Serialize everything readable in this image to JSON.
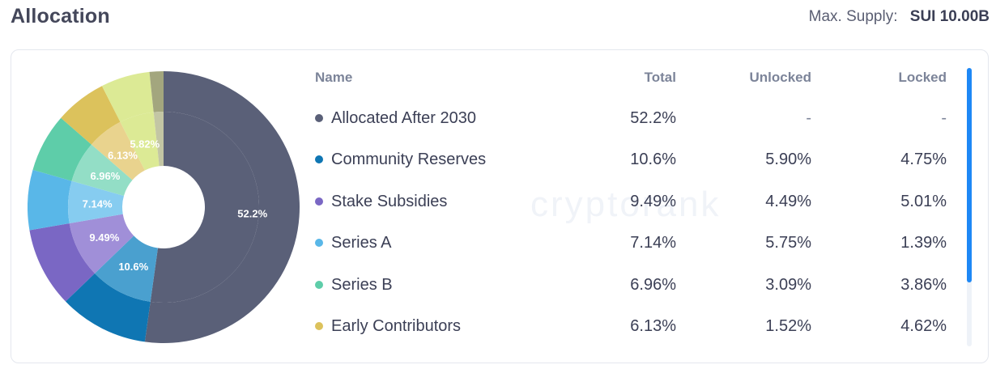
{
  "header": {
    "title": "Allocation",
    "supply_label": "Max. Supply:",
    "supply_value": "SUI 10.00B"
  },
  "watermark": "cryptorank",
  "table": {
    "columns": [
      "Name",
      "Total",
      "Unlocked",
      "Locked"
    ],
    "rows": [
      {
        "name": "Allocated After 2030",
        "total": "52.2%",
        "unlocked": "-",
        "locked": "-",
        "color": "#5a6078"
      },
      {
        "name": "Community Reserves",
        "total": "10.6%",
        "unlocked": "5.90%",
        "locked": "4.75%",
        "color": "#0f76b3"
      },
      {
        "name": "Stake Subsidies",
        "total": "9.49%",
        "unlocked": "4.49%",
        "locked": "5.01%",
        "color": "#7a67c4"
      },
      {
        "name": "Series A",
        "total": "7.14%",
        "unlocked": "5.75%",
        "locked": "1.39%",
        "color": "#59b7e8"
      },
      {
        "name": "Series B",
        "total": "6.96%",
        "unlocked": "3.09%",
        "locked": "3.86%",
        "color": "#5ecda9"
      },
      {
        "name": "Early Contributors",
        "total": "6.13%",
        "unlocked": "1.52%",
        "locked": "4.62%",
        "color": "#dcc25c"
      }
    ]
  },
  "scrollbar": {
    "position_fraction": 0.0,
    "visible_fraction": 0.77
  },
  "chart_data": {
    "type": "pie",
    "inner_hole": true,
    "start": "top",
    "direction": "clockwise",
    "slices": [
      {
        "name": "Allocated After 2030",
        "value": 52.2,
        "label": "52.2%",
        "outer_color": "#5a6078",
        "inner_color": "#5a6078"
      },
      {
        "name": "Community Reserves",
        "value": 10.6,
        "label": "10.6%",
        "outer_color": "#0f76b3",
        "inner_color": "#4aa0cf"
      },
      {
        "name": "Stake Subsidies",
        "value": 9.49,
        "label": "9.49%",
        "outer_color": "#7a67c4",
        "inner_color": "#a08fd8"
      },
      {
        "name": "Series A",
        "value": 7.14,
        "label": "7.14%",
        "outer_color": "#59b7e8",
        "inner_color": "#86ccf0"
      },
      {
        "name": "Series B",
        "value": 6.96,
        "label": "6.96%",
        "outer_color": "#5ecda9",
        "inner_color": "#93dec6"
      },
      {
        "name": "Early Contributors",
        "value": 6.13,
        "label": "6.13%",
        "outer_color": "#dcc25c",
        "inner_color": "#e9d38e"
      },
      {
        "name": "",
        "value": 5.82,
        "label": "5.82%",
        "outer_color": "#dcea95",
        "inner_color": "#dcea95"
      },
      {
        "name": "",
        "value": 1.66,
        "label": "",
        "outer_color": "#a3a67e",
        "inner_color": "#c3c6a4"
      }
    ]
  }
}
